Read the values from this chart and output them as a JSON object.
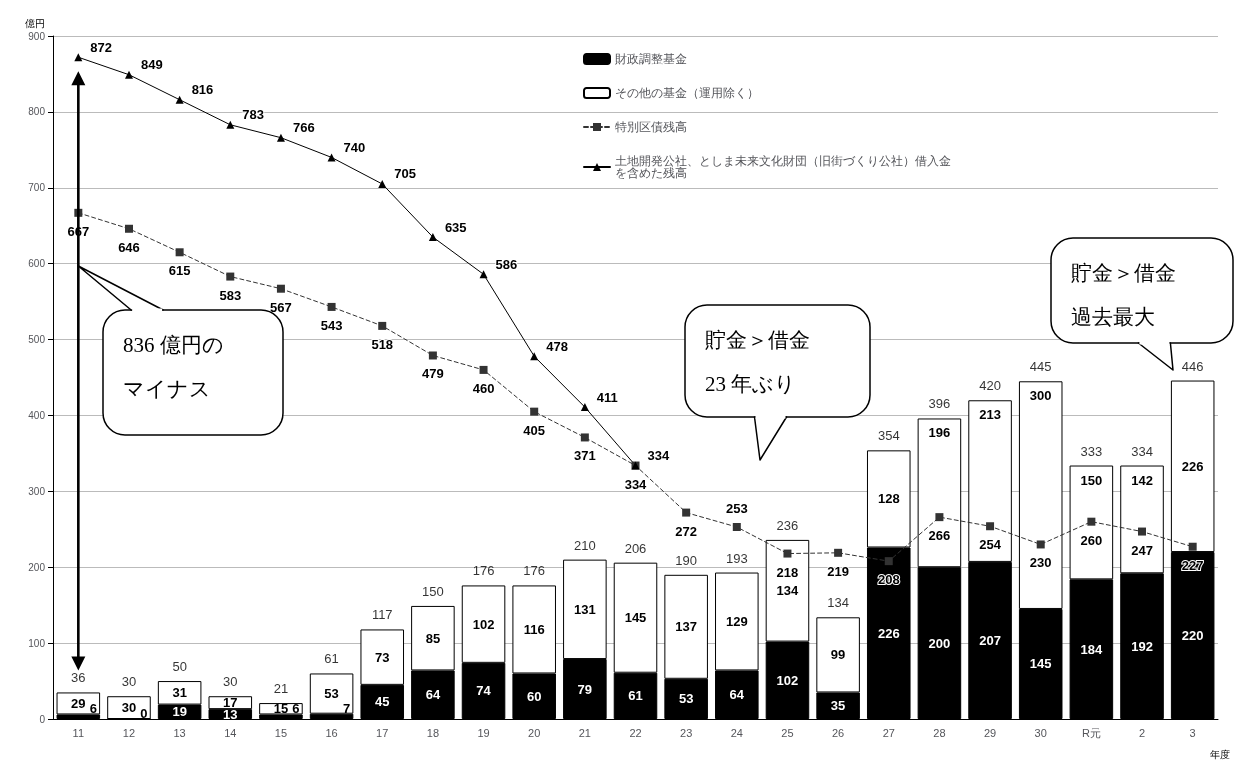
{
  "chart_data": {
    "type": "bar",
    "stacked": true,
    "ylabel": "億円",
    "xlabel": "年度",
    "categories": [
      "11",
      "12",
      "13",
      "14",
      "15",
      "16",
      "17",
      "18",
      "19",
      "20",
      "21",
      "22",
      "23",
      "24",
      "25",
      "26",
      "27",
      "28",
      "29",
      "30",
      "R元",
      "2",
      "3"
    ],
    "series": [
      {
        "name": "財政調整基金",
        "color": "#000000",
        "values": [
          6,
          0,
          19,
          13,
          6,
          7,
          45,
          64,
          74,
          60,
          79,
          61,
          53,
          64,
          102,
          35,
          226,
          200,
          207,
          145,
          184,
          192,
          220
        ]
      },
      {
        "name": "その他の基金（運用除く）",
        "color": "#ffffff",
        "values": [
          29,
          30,
          31,
          17,
          15,
          53,
          73,
          85,
          102,
          116,
          131,
          145,
          137,
          129,
          134,
          99,
          128,
          196,
          213,
          300,
          150,
          142,
          226
        ]
      },
      {
        "name": "特別区債残高",
        "type": "line",
        "color": "#333333",
        "line_style": "dashed",
        "marker": "square",
        "values": [
          667,
          646,
          615,
          583,
          567,
          543,
          518,
          479,
          460,
          405,
          371,
          334,
          272,
          253,
          218,
          219,
          208,
          266,
          254,
          230,
          260,
          247,
          227
        ]
      },
      {
        "name": "土地開発公社、としま未来文化財団（旧街づくり公社）借入金を含めた残高",
        "type": "line",
        "color": "#000000",
        "line_style": "solid",
        "marker": "triangle",
        "values": [
          872,
          849,
          816,
          783,
          766,
          740,
          705,
          635,
          586,
          478,
          411,
          334,
          null,
          null,
          null,
          null,
          null,
          null,
          null,
          null,
          null,
          null,
          null
        ]
      }
    ],
    "totals": [
      "36",
      "30",
      "50",
      "30",
      "21",
      "61",
      "117",
      "150",
      "176",
      "176",
      "210",
      "206",
      "190",
      "193",
      "236",
      "134",
      "354",
      "396",
      "420",
      "445",
      "333",
      "334",
      "446"
    ],
    "data_labels": true,
    "ylim": [
      0,
      900
    ],
    "yticks": [
      0,
      100,
      200,
      300,
      400,
      500,
      600,
      700,
      800,
      900
    ],
    "grid": "y",
    "legend": "top",
    "annotations": [
      "836 億円のマイナス",
      "貯金＞借金23 年ぶり",
      "貯金＞借金過去最大"
    ]
  }
}
